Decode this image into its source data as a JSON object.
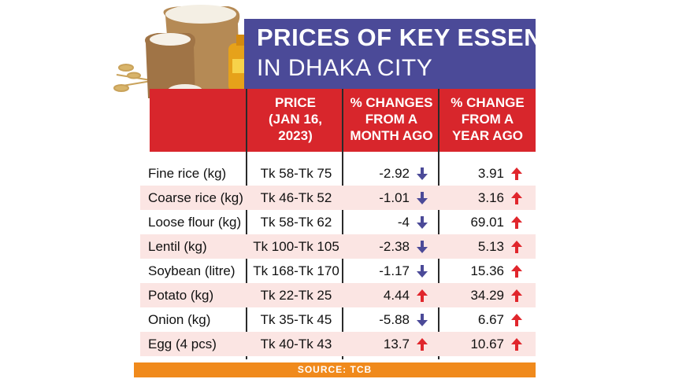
{
  "title": {
    "line1": "PRICES OF KEY ESSENTIALS",
    "line2": "IN DHAKA CITY"
  },
  "headers": {
    "price": "PRICE\n(JAN 16,\n2023)",
    "month": "% CHANGES\nFROM A\nMONTH AGO",
    "year": "% CHANGE\nFROM A\nYEAR AGO"
  },
  "rows": [
    {
      "item": "Fine rice (kg)",
      "price": "Tk 58-Tk 75",
      "month": "-2.92",
      "month_dir": "down",
      "year": "3.91",
      "year_dir": "up"
    },
    {
      "item": "Coarse rice (kg)",
      "price": "Tk 46-Tk 52",
      "month": "-1.01",
      "month_dir": "down",
      "year": "3.16",
      "year_dir": "up"
    },
    {
      "item": "Loose flour (kg)",
      "price": "Tk 58-Tk 62",
      "month": "-4",
      "month_dir": "down",
      "year": "69.01",
      "year_dir": "up"
    },
    {
      "item": "Lentil (kg)",
      "price": "Tk 100-Tk 105",
      "month": "-2.38",
      "month_dir": "down",
      "year": "5.13",
      "year_dir": "up"
    },
    {
      "item": "Soybean (litre)",
      "price": "Tk 168-Tk 170",
      "month": "-1.17",
      "month_dir": "down",
      "year": "15.36",
      "year_dir": "up"
    },
    {
      "item": "Potato (kg)",
      "price": "Tk 22-Tk 25",
      "month": "4.44",
      "month_dir": "up",
      "year": "34.29",
      "year_dir": "up"
    },
    {
      "item": "Onion (kg)",
      "price": "Tk 35-Tk 45",
      "month": "-5.88",
      "month_dir": "down",
      "year": "6.67",
      "year_dir": "up"
    },
    {
      "item": "Egg (4 pcs)",
      "price": "Tk 40-Tk 43",
      "month": "13.7",
      "month_dir": "up",
      "year": "10.67",
      "year_dir": "up"
    }
  ],
  "source": "SOURCE: TCB",
  "colors": {
    "title_band": "#4b4a98",
    "header_band": "#d8262c",
    "row_shade": "#fbe5e3",
    "arrow_down": "#4b4a98",
    "arrow_up": "#e0262c",
    "source_bar": "#f08a1c"
  },
  "icons": {
    "down": "arrow-down-icon",
    "up": "arrow-up-icon"
  }
}
